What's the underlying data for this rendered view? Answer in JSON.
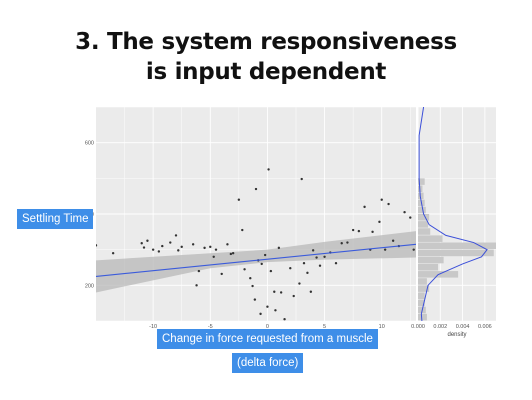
{
  "slide": {
    "title_line1": "3. The system responsiveness",
    "title_line2": "is input dependent",
    "ylabel_tag": "Settling Time",
    "xlabel_tag": "Change in force requested from a muscle",
    "xlabel_tag2": "(delta force)"
  },
  "colors": {
    "tag_bg": "#3e8ee8",
    "panel_bg": "#ebebeb",
    "grid": "#ffffff",
    "point": "#333333",
    "fit_line": "#3b5bdb",
    "ci_band": "#b8b8b8",
    "hist_bar": "#c8c8c8",
    "density_line": "#3b4fd9"
  },
  "chart_data": [
    {
      "type": "scatter",
      "title": "",
      "xlabel": "",
      "ylabel": "",
      "xlim": [
        -15,
        13
      ],
      "ylim": [
        100,
        700
      ],
      "xticks": [
        -10,
        -5,
        0,
        5,
        10
      ],
      "yticks": [
        200,
        400,
        600
      ],
      "grid": true,
      "points": [
        [
          -15,
          312
        ],
        [
          -13.5,
          290
        ],
        [
          -11,
          318
        ],
        [
          -10.8,
          306
        ],
        [
          -10.5,
          325
        ],
        [
          -10,
          300
        ],
        [
          -9.5,
          295
        ],
        [
          -9.2,
          310
        ],
        [
          -8.5,
          320
        ],
        [
          -8,
          340
        ],
        [
          -7.8,
          298
        ],
        [
          -7.5,
          308
        ],
        [
          -6.5,
          315
        ],
        [
          -6.2,
          200
        ],
        [
          -6,
          240
        ],
        [
          -5.5,
          305
        ],
        [
          -5,
          308
        ],
        [
          -4.7,
          280
        ],
        [
          -4.5,
          300
        ],
        [
          -4,
          232
        ],
        [
          -3.5,
          315
        ],
        [
          -3.2,
          288
        ],
        [
          -3,
          290
        ],
        [
          -2.5,
          440
        ],
        [
          -2.2,
          355
        ],
        [
          -2,
          245
        ],
        [
          -1.5,
          220
        ],
        [
          -1.3,
          198
        ],
        [
          -1.1,
          160
        ],
        [
          -1,
          470
        ],
        [
          -0.8,
          270
        ],
        [
          -0.6,
          120
        ],
        [
          -0.5,
          260
        ],
        [
          -0.4,
          92
        ],
        [
          -0.2,
          285
        ],
        [
          0,
          140
        ],
        [
          0.1,
          525
        ],
        [
          0.2,
          60
        ],
        [
          0.3,
          240
        ],
        [
          0.4,
          72
        ],
        [
          0.5,
          10
        ],
        [
          0.6,
          182
        ],
        [
          0.7,
          130
        ],
        [
          0.9,
          20
        ],
        [
          1,
          305
        ],
        [
          1.2,
          180
        ],
        [
          1.5,
          105
        ],
        [
          1.8,
          70
        ],
        [
          2,
          248
        ],
        [
          2.3,
          170
        ],
        [
          2.5,
          30
        ],
        [
          2.8,
          205
        ],
        [
          3,
          498
        ],
        [
          3.2,
          262
        ],
        [
          3.5,
          235
        ],
        [
          3.8,
          182
        ],
        [
          4,
          298
        ],
        [
          4.3,
          278
        ],
        [
          4.6,
          255
        ],
        [
          5,
          280
        ],
        [
          5.5,
          292
        ],
        [
          6,
          262
        ],
        [
          6.5,
          318
        ],
        [
          7,
          320
        ],
        [
          7.5,
          355
        ],
        [
          8,
          352
        ],
        [
          8.5,
          420
        ],
        [
          9,
          300
        ],
        [
          9.2,
          350
        ],
        [
          9.8,
          378
        ],
        [
          10,
          440
        ],
        [
          10.3,
          300
        ],
        [
          10.6,
          428
        ],
        [
          11,
          325
        ],
        [
          11.5,
          310
        ],
        [
          12,
          405
        ],
        [
          12.5,
          390
        ],
        [
          12.8,
          300
        ]
      ],
      "fit_line": {
        "x": [
          -15,
          13
        ],
        "y": [
          225,
          315
        ]
      },
      "ci_band": {
        "x": [
          -15,
          -5,
          0,
          5,
          13
        ],
        "lower": [
          180,
          248,
          265,
          272,
          278
        ],
        "upper": [
          270,
          290,
          300,
          322,
          352
        ]
      }
    },
    {
      "type": "bar",
      "orientation": "horizontal",
      "title": "",
      "xlabel": "density",
      "ylabel": "",
      "xlim": [
        0,
        0.007
      ],
      "xticks": [
        0.0,
        0.002,
        0.004,
        0.006
      ],
      "xtick_labels": [
        "0.000",
        "0.002",
        "0.004",
        "0.006"
      ],
      "bin_starts": [
        80,
        100,
        120,
        140,
        160,
        180,
        200,
        220,
        240,
        260,
        280,
        300,
        320,
        340,
        360,
        380,
        400,
        420,
        440,
        460,
        480
      ],
      "bin_width": 20,
      "values": [
        0.0006,
        0.0008,
        0.0007,
        0.0006,
        0.0006,
        0.001,
        0.0008,
        0.0036,
        0.0018,
        0.0023,
        0.0068,
        0.0075,
        0.0022,
        0.0011,
        0.0009,
        0.001,
        0.0007,
        0.0006,
        0.0005,
        0.0004,
        0.0006
      ],
      "density_curve": {
        "y": [
          80,
          120,
          160,
          200,
          230,
          260,
          280,
          300,
          320,
          340,
          370,
          400,
          450,
          500,
          560,
          620,
          700
        ],
        "density": [
          0.0004,
          0.0003,
          0.0006,
          0.0009,
          0.0018,
          0.004,
          0.0057,
          0.0062,
          0.005,
          0.0025,
          0.001,
          0.0005,
          0.0002,
          0.0001,
          0.0001,
          0.0001,
          0.0005
        ]
      }
    }
  ]
}
